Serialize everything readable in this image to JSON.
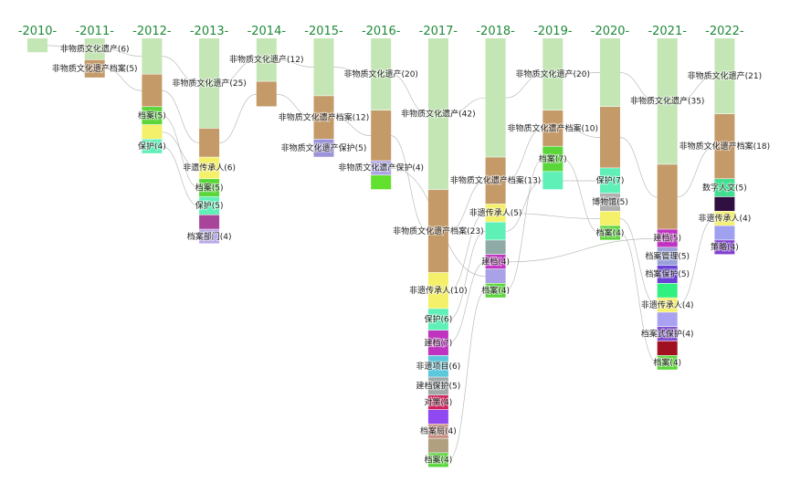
{
  "chart_data": {
    "type": "alluvial-timeline",
    "columns": [
      {
        "year": "-2010-",
        "segments": [
          {
            "label": "",
            "value": 4,
            "color": "#c3e6b4"
          }
        ]
      },
      {
        "year": "-2011-",
        "segments": [
          {
            "label": "非物质文化遗产(6)",
            "value": 6,
            "color": "#c3e6b4"
          },
          {
            "label": "非物质文化遗产档案(5)",
            "value": 5,
            "color": "#c49a68"
          }
        ]
      },
      {
        "year": "-2012-",
        "segments": [
          {
            "label": "",
            "value": 10,
            "color": "#c3e6b4"
          },
          {
            "label": "",
            "value": 9,
            "color": "#c49a68"
          },
          {
            "label": "档案(5)",
            "value": 5,
            "color": "#5bd63a"
          },
          {
            "label": "",
            "value": 4,
            "color": "#f4f06a"
          },
          {
            "label": "保护(4)",
            "value": 4,
            "color": "#5ff0b8"
          }
        ]
      },
      {
        "year": "-2013-",
        "segments": [
          {
            "label": "非物质文化遗产(25)",
            "value": 25,
            "color": "#c3e6b4"
          },
          {
            "label": "",
            "value": 8,
            "color": "#c49a68"
          },
          {
            "label": "非遗传承人(6)",
            "value": 6,
            "color": "#f4f06a"
          },
          {
            "label": "档案(5)",
            "value": 5,
            "color": "#5bd63a"
          },
          {
            "label": "保护(5)",
            "value": 5,
            "color": "#5ff0b8"
          },
          {
            "label": "",
            "value": 4,
            "color": "#a8459a"
          },
          {
            "label": "档案部门(4)",
            "value": 4,
            "color": "#b9a8e8"
          }
        ]
      },
      {
        "year": "-2014-",
        "segments": [
          {
            "label": "非物质文化遗产(12)",
            "value": 12,
            "color": "#c3e6b4"
          },
          {
            "label": "",
            "value": 7,
            "color": "#c49a68"
          }
        ]
      },
      {
        "year": "-2015-",
        "segments": [
          {
            "label": "",
            "value": 16,
            "color": "#c3e6b4"
          },
          {
            "label": "非物质文化遗产档案(12)",
            "value": 12,
            "color": "#c49a68"
          },
          {
            "label": "非物质文化遗产保护(5)",
            "value": 5,
            "color": "#9c94d8"
          }
        ]
      },
      {
        "year": "-2016-",
        "segments": [
          {
            "label": "非物质文化遗产(20)",
            "value": 20,
            "color": "#c3e6b4"
          },
          {
            "label": "",
            "value": 14,
            "color": "#c49a68"
          },
          {
            "label": "非物质文化遗产保护(4)",
            "value": 4,
            "color": "#a9a2e6"
          },
          {
            "label": "",
            "value": 4,
            "color": "#62e02e"
          }
        ]
      },
      {
        "year": "-2017-",
        "segments": [
          {
            "label": "非物质文化遗产(42)",
            "value": 42,
            "color": "#c3e6b4"
          },
          {
            "label": "非物质文化遗产档案(23)",
            "value": 23,
            "color": "#c49a68"
          },
          {
            "label": "非遗传承人(10)",
            "value": 10,
            "color": "#f4f06a"
          },
          {
            "label": "保护(6)",
            "value": 6,
            "color": "#5ff0b8"
          },
          {
            "label": "建档(7)",
            "value": 7,
            "color": "#c032c0"
          },
          {
            "label": "非遗项目(6)",
            "value": 6,
            "color": "#5cc8dc"
          },
          {
            "label": "建档保护(5)",
            "value": 5,
            "color": "#a0a8a8"
          },
          {
            "label": "对策(4)",
            "value": 4,
            "color": "#d0205a"
          },
          {
            "label": "",
            "value": 4,
            "color": "#9048f0"
          },
          {
            "label": "档案局(4)",
            "value": 4,
            "color": "#c89080"
          },
          {
            "label": "",
            "value": 4,
            "color": "#b0a080"
          },
          {
            "label": "档案(4)",
            "value": 4,
            "color": "#5bd63a"
          }
        ]
      },
      {
        "year": "-2018-",
        "segments": [
          {
            "label": "",
            "value": 33,
            "color": "#c3e6b4"
          },
          {
            "label": "非物质文化遗产档案(13)",
            "value": 13,
            "color": "#c49a68"
          },
          {
            "label": "非遗传承人(5)",
            "value": 5,
            "color": "#f4f06a"
          },
          {
            "label": "",
            "value": 5,
            "color": "#5ff0b8"
          },
          {
            "label": "",
            "value": 4,
            "color": "#90aaa8"
          },
          {
            "label": "建档(4)",
            "value": 4,
            "color": "#c032c0"
          },
          {
            "label": "",
            "value": 4,
            "color": "#a9a2e6"
          },
          {
            "label": "档案(4)",
            "value": 4,
            "color": "#5bd63a"
          }
        ]
      },
      {
        "year": "-2019-",
        "segments": [
          {
            "label": "非物质文化遗产(20)",
            "value": 20,
            "color": "#c3e6b4"
          },
          {
            "label": "非物质文化遗产档案(10)",
            "value": 10,
            "color": "#c49a68"
          },
          {
            "label": "档案(7)",
            "value": 7,
            "color": "#5bd63a"
          },
          {
            "label": "",
            "value": 5,
            "color": "#5ff0b8"
          }
        ]
      },
      {
        "year": "-2020-",
        "segments": [
          {
            "label": "",
            "value": 19,
            "color": "#c3e6b4"
          },
          {
            "label": "",
            "value": 17,
            "color": "#c49a68"
          },
          {
            "label": "保护(7)",
            "value": 7,
            "color": "#5ff0b8"
          },
          {
            "label": "博物馆(5)",
            "value": 5,
            "color": "#b0b0b0"
          },
          {
            "label": "",
            "value": 4,
            "color": "#f4f06a"
          },
          {
            "label": "档案(4)",
            "value": 4,
            "color": "#5bd63a"
          }
        ]
      },
      {
        "year": "-2021-",
        "segments": [
          {
            "label": "非物质文化遗产(35)",
            "value": 35,
            "color": "#c3e6b4"
          },
          {
            "label": "",
            "value": 18,
            "color": "#c49a68"
          },
          {
            "label": "建档(5)",
            "value": 5,
            "color": "#c032c0"
          },
          {
            "label": "档案管理(5)",
            "value": 5,
            "color": "#9aa0d8"
          },
          {
            "label": "档案保护(5)",
            "value": 5,
            "color": "#6a40d8"
          },
          {
            "label": "",
            "value": 4,
            "color": "#30f080"
          },
          {
            "label": "非遗传承人(4)",
            "value": 4,
            "color": "#f4f06a"
          },
          {
            "label": "",
            "value": 4,
            "color": "#a9a2f0"
          },
          {
            "label": "档案式保护(4)",
            "value": 4,
            "color": "#8050d0"
          },
          {
            "label": "",
            "value": 4,
            "color": "#a01020"
          },
          {
            "label": "档案(4)",
            "value": 4,
            "color": "#5bd63a"
          }
        ]
      },
      {
        "year": "-2022-",
        "segments": [
          {
            "label": "非物质文化遗产(21)",
            "value": 21,
            "color": "#c3e6b4"
          },
          {
            "label": "非物质文化遗产档案(18)",
            "value": 18,
            "color": "#c49a68"
          },
          {
            "label": "数字人文(5)",
            "value": 5,
            "color": "#40e090"
          },
          {
            "label": "",
            "value": 4,
            "color": "#301040"
          },
          {
            "label": "非遗传承人(4)",
            "value": 4,
            "color": "#f4f06a"
          },
          {
            "label": "",
            "value": 4,
            "color": "#a0a0f0"
          },
          {
            "label": "策略(4)",
            "value": 4,
            "color": "#8040d0"
          }
        ]
      }
    ]
  }
}
